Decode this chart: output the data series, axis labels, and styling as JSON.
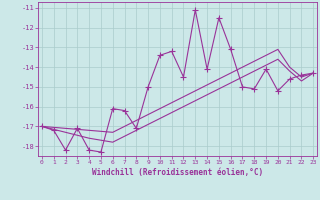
{
  "xlabel": "Windchill (Refroidissement éolien,°C)",
  "x_values": [
    0,
    1,
    2,
    3,
    4,
    5,
    6,
    7,
    8,
    9,
    10,
    11,
    12,
    13,
    14,
    15,
    16,
    17,
    18,
    19,
    20,
    21,
    22,
    23
  ],
  "line1_y": [
    -17.0,
    -17.2,
    -18.2,
    -17.1,
    -18.2,
    -18.3,
    -16.1,
    -16.2,
    -17.1,
    -15.0,
    -13.4,
    -13.2,
    -14.5,
    -11.1,
    -14.1,
    -11.5,
    -13.1,
    -15.0,
    -15.1,
    -14.1,
    -15.2,
    -14.6,
    -14.4,
    -14.3
  ],
  "line2_y": [
    -17.0,
    -17.15,
    -17.3,
    -17.45,
    -17.6,
    -17.7,
    -17.8,
    -17.5,
    -17.2,
    -16.9,
    -16.6,
    -16.3,
    -16.0,
    -15.7,
    -15.4,
    -15.1,
    -14.8,
    -14.5,
    -14.2,
    -13.9,
    -13.6,
    -14.2,
    -14.7,
    -14.3
  ],
  "line3_y": [
    -17.0,
    -17.05,
    -17.1,
    -17.15,
    -17.2,
    -17.25,
    -17.3,
    -17.0,
    -16.7,
    -16.4,
    -16.1,
    -15.8,
    -15.5,
    -15.2,
    -14.9,
    -14.6,
    -14.3,
    -14.0,
    -13.7,
    -13.4,
    -13.1,
    -14.0,
    -14.5,
    -14.3
  ],
  "color": "#993399",
  "bg_color": "#cce8e8",
  "grid_color": "#aacccc",
  "ylim": [
    -18.5,
    -10.7
  ],
  "xlim": [
    -0.3,
    23.3
  ],
  "yticks": [
    -18,
    -17,
    -16,
    -15,
    -14,
    -13,
    -12,
    -11
  ],
  "xticks": [
    0,
    1,
    2,
    3,
    4,
    5,
    6,
    7,
    8,
    9,
    10,
    11,
    12,
    13,
    14,
    15,
    16,
    17,
    18,
    19,
    20,
    21,
    22,
    23
  ]
}
